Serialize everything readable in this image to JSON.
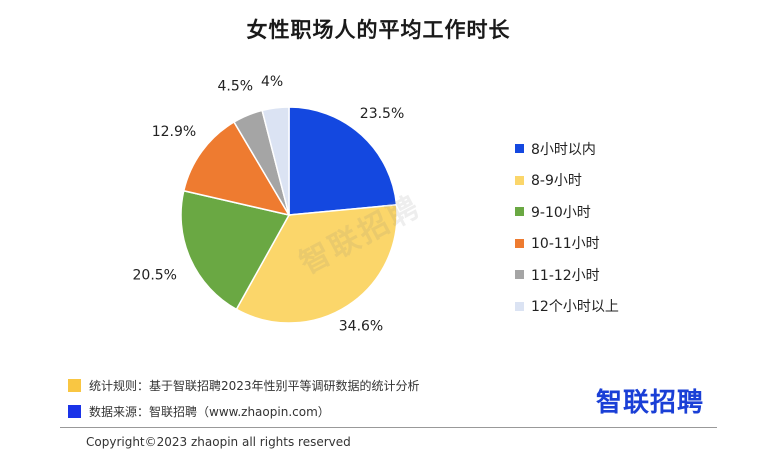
{
  "chart_data": {
    "type": "pie",
    "title": "女性职场人的平均工作时长",
    "categories": [
      "8小时以内",
      "8-9小时",
      "9-10小时",
      "10-11小时",
      "11-12小时",
      "12个小时以上"
    ],
    "values": [
      23.5,
      34.6,
      20.5,
      12.9,
      4.5,
      4.0
    ],
    "value_labels": [
      "23.5%",
      "34.6%",
      "20.5%",
      "12.9%",
      "4.5%",
      "4%"
    ],
    "colors": [
      "#1448e0",
      "#fbd66a",
      "#6aa843",
      "#ee7b30",
      "#a5a5a5",
      "#dbe3f3"
    ],
    "start_angle": "12 o'clock",
    "direction": "clockwise",
    "legend_placement": "right"
  },
  "watermark": "智联招聘",
  "notes": [
    {
      "text": "统计规则：基于智联招聘2023年性别平等调研数据的统计分析",
      "color": "#f9c642"
    },
    {
      "text": "数据来源：智联招聘（www.zhaopin.com）",
      "color": "#1a33e8"
    }
  ],
  "logo_text": "智联招聘",
  "logo_color": "#1a3fd6",
  "copyright": "Copyright©2023 zhaopin all rights reserved"
}
